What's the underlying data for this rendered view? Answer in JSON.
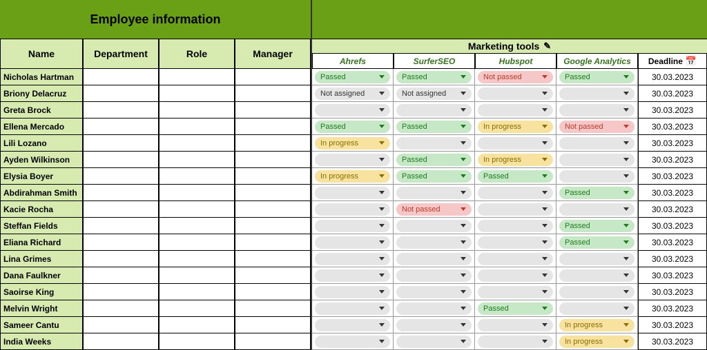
{
  "colors": {
    "banner": "#6aa016",
    "light_green": "#d7eab0",
    "text_tool_header": "#36721e",
    "pill_empty_bg": "#e5e5e5",
    "pill_passed_bg": "#c7e8c7",
    "pill_passed_text": "#1e7a1e",
    "pill_notpassed_bg": "#f6c7c7",
    "pill_notpassed_text": "#c0392b",
    "pill_inprogress_bg": "#f7e2a0",
    "pill_inprogress_text": "#8a6d00"
  },
  "left": {
    "title": "Employee information",
    "headers": [
      "Name",
      "Department",
      "Role",
      "Manager"
    ]
  },
  "right": {
    "group_title": "Marketing tools",
    "group_icon": "✎",
    "tool_headers": [
      "Ahrefs",
      "SurferSEO",
      "Hubspot",
      "Google Analytics"
    ],
    "deadline_header": "Deadline",
    "deadline_icon": "📅"
  },
  "status_labels": {
    "passed": "Passed",
    "notpassed": "Not passed",
    "inprogress": "In progress",
    "notassigned": "Not assigned",
    "empty": ""
  },
  "employees": [
    {
      "name": "Nicholas Hartman",
      "dept": "",
      "role": "",
      "manager": "",
      "tools": [
        "passed",
        "passed",
        "notpassed",
        "passed"
      ],
      "deadline": "30.03.2023"
    },
    {
      "name": "Briony Delacruz",
      "dept": "",
      "role": "",
      "manager": "",
      "tools": [
        "notassigned",
        "notassigned",
        "empty",
        "empty"
      ],
      "deadline": "30.03.2023"
    },
    {
      "name": "Greta Brock",
      "dept": "",
      "role": "",
      "manager": "",
      "tools": [
        "empty",
        "empty",
        "empty",
        "empty"
      ],
      "deadline": "30.03.2023"
    },
    {
      "name": "Ellena Mercado",
      "dept": "",
      "role": "",
      "manager": "",
      "tools": [
        "passed",
        "passed",
        "inprogress",
        "notpassed"
      ],
      "deadline": "30.03.2023"
    },
    {
      "name": "Lili Lozano",
      "dept": "",
      "role": "",
      "manager": "",
      "tools": [
        "inprogress",
        "empty",
        "empty",
        "empty"
      ],
      "deadline": "30.03.2023"
    },
    {
      "name": "Ayden Wilkinson",
      "dept": "",
      "role": "",
      "manager": "",
      "tools": [
        "empty",
        "passed",
        "inprogress",
        "empty"
      ],
      "deadline": "30.03.2023"
    },
    {
      "name": "Elysia Boyer",
      "dept": "",
      "role": "",
      "manager": "",
      "tools": [
        "inprogress",
        "passed",
        "passed",
        "empty"
      ],
      "deadline": "30.03.2023"
    },
    {
      "name": "Abdirahman Smith",
      "dept": "",
      "role": "",
      "manager": "",
      "tools": [
        "empty",
        "empty",
        "empty",
        "passed"
      ],
      "deadline": "30.03.2023"
    },
    {
      "name": "Kacie Rocha",
      "dept": "",
      "role": "",
      "manager": "",
      "tools": [
        "empty",
        "notpassed",
        "empty",
        "empty"
      ],
      "deadline": "30.03.2023"
    },
    {
      "name": "Steffan Fields",
      "dept": "",
      "role": "",
      "manager": "",
      "tools": [
        "empty",
        "empty",
        "empty",
        "passed"
      ],
      "deadline": "30.03.2023"
    },
    {
      "name": "Eliana Richard",
      "dept": "",
      "role": "",
      "manager": "",
      "tools": [
        "empty",
        "empty",
        "empty",
        "passed"
      ],
      "deadline": "30.03.2023"
    },
    {
      "name": "Lina Grimes",
      "dept": "",
      "role": "",
      "manager": "",
      "tools": [
        "empty",
        "empty",
        "empty",
        "empty"
      ],
      "deadline": "30.03.2023"
    },
    {
      "name": "Dana Faulkner",
      "dept": "",
      "role": "",
      "manager": "",
      "tools": [
        "empty",
        "empty",
        "empty",
        "empty"
      ],
      "deadline": "30.03.2023"
    },
    {
      "name": "Saoirse King",
      "dept": "",
      "role": "",
      "manager": "",
      "tools": [
        "empty",
        "empty",
        "empty",
        "empty"
      ],
      "deadline": "30.03.2023"
    },
    {
      "name": "Melvin Wright",
      "dept": "",
      "role": "",
      "manager": "",
      "tools": [
        "empty",
        "empty",
        "passed",
        "empty"
      ],
      "deadline": "30.03.2023"
    },
    {
      "name": "Sameer Cantu",
      "dept": "",
      "role": "",
      "manager": "",
      "tools": [
        "empty",
        "empty",
        "empty",
        "inprogress"
      ],
      "deadline": "30.03.2023"
    },
    {
      "name": "India Weeks",
      "dept": "",
      "role": "",
      "manager": "",
      "tools": [
        "empty",
        "empty",
        "empty",
        "inprogress"
      ],
      "deadline": "30.03.2023"
    }
  ]
}
